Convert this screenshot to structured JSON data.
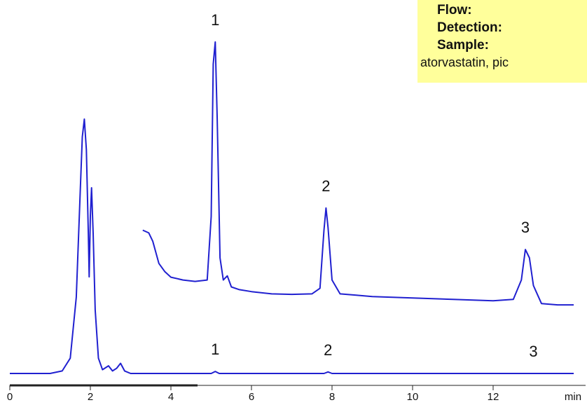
{
  "conditions": {
    "flow_label": "Flow:",
    "detection_label": "Detection:",
    "sample_label": "Sample:",
    "sample_text": "atorvastatin, pic",
    "background_color": "#ffff9b"
  },
  "chart_data": {
    "type": "line",
    "title": "",
    "xlabel": "",
    "ylabel": "",
    "x_unit_label": "min",
    "xlim": [
      0,
      14
    ],
    "xticks": [
      0,
      2,
      4,
      6,
      8,
      10,
      12
    ],
    "grid": false,
    "line_color": "#2020d0",
    "series": [
      {
        "trace": "upper",
        "x": [
          3.3,
          3.45,
          3.55,
          3.7,
          3.85,
          4.0,
          4.3,
          4.6,
          4.9,
          5.0,
          5.05,
          5.1,
          5.15,
          5.22,
          5.3,
          5.4,
          5.5,
          5.7,
          6.0,
          6.5,
          7.0,
          7.5,
          7.7,
          7.8,
          7.85,
          7.9,
          8.0,
          8.2,
          8.6,
          9.0,
          10.0,
          11.0,
          12.0,
          12.5,
          12.7,
          12.8,
          12.9,
          13.0,
          13.2,
          13.6,
          14.0
        ],
        "y": [
          0.3,
          0.29,
          0.26,
          0.18,
          0.15,
          0.13,
          0.12,
          0.115,
          0.12,
          0.35,
          0.9,
          0.98,
          0.7,
          0.2,
          0.12,
          0.135,
          0.095,
          0.085,
          0.078,
          0.07,
          0.068,
          0.07,
          0.09,
          0.3,
          0.38,
          0.31,
          0.12,
          0.07,
          0.065,
          0.06,
          0.055,
          0.05,
          0.045,
          0.05,
          0.12,
          0.23,
          0.2,
          0.1,
          0.035,
          0.03,
          0.03
        ]
      },
      {
        "trace": "lower",
        "x": [
          0.0,
          1.0,
          1.3,
          1.5,
          1.65,
          1.75,
          1.8,
          1.85,
          1.9,
          1.95,
          1.97,
          2.0,
          2.03,
          2.07,
          2.12,
          2.2,
          2.3,
          2.45,
          2.55,
          2.65,
          2.75,
          2.85,
          3.0,
          3.5,
          5.0,
          5.1,
          5.2,
          7.8,
          7.9,
          8.0,
          14.0
        ],
        "y": [
          0.0,
          0.0,
          0.01,
          0.06,
          0.3,
          0.72,
          0.93,
          1.0,
          0.88,
          0.55,
          0.38,
          0.62,
          0.73,
          0.55,
          0.25,
          0.06,
          0.015,
          0.03,
          0.01,
          0.02,
          0.04,
          0.01,
          0.0,
          0.0,
          0.0,
          0.008,
          0.0,
          0.0,
          0.006,
          0.0,
          0.0
        ]
      }
    ],
    "annotations": [
      {
        "text": "1",
        "x": 5.1,
        "trace": "upper"
      },
      {
        "text": "2",
        "x": 7.85,
        "trace": "upper"
      },
      {
        "text": "3",
        "x": 12.8,
        "trace": "upper"
      },
      {
        "text": "1",
        "x": 5.1,
        "trace": "lower"
      },
      {
        "text": "2",
        "x": 7.9,
        "trace": "lower"
      },
      {
        "text": "3",
        "x": 13.0,
        "trace": "lower"
      }
    ]
  }
}
